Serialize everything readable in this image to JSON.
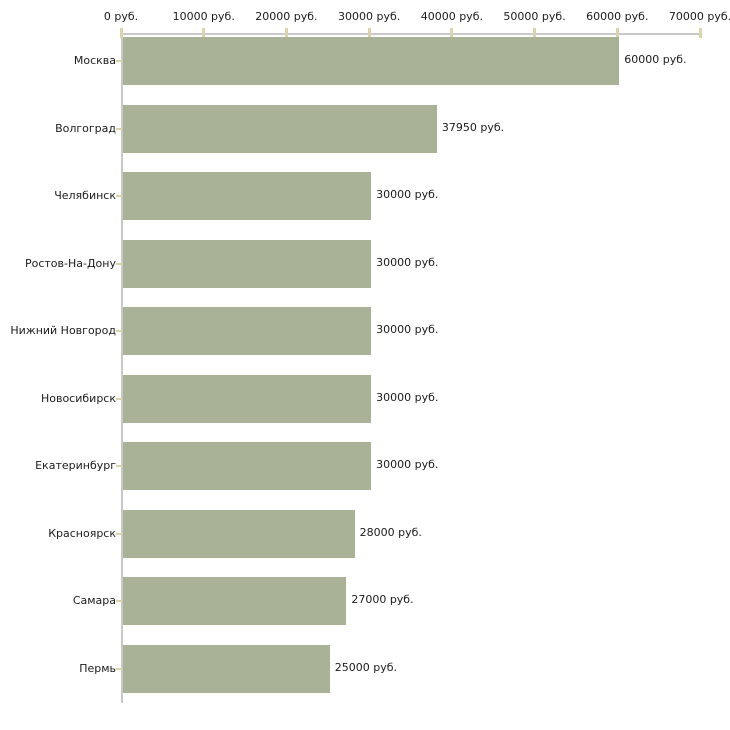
{
  "chart_data": {
    "type": "bar",
    "orientation": "horizontal",
    "title": "",
    "xlabel": "",
    "ylabel": "",
    "unit": "руб.",
    "grid": false,
    "legend": null,
    "xlim": [
      0,
      70000
    ],
    "x_ticks": [
      0,
      10000,
      20000,
      30000,
      40000,
      50000,
      60000,
      70000
    ],
    "x_tick_labels": [
      "0 руб.",
      "10000 руб.",
      "20000 руб.",
      "30000 руб.",
      "40000 руб.",
      "50000 руб.",
      "60000 руб.",
      "70000 руб."
    ],
    "categories": [
      "Москва",
      "Волгоград",
      "Челябинск",
      "Ростов-На-Дону",
      "Нижний Новгород",
      "Новосибирск",
      "Екатеринбург",
      "Красноярск",
      "Самара",
      "Пермь"
    ],
    "values": [
      60000,
      37950,
      30000,
      30000,
      30000,
      30000,
      30000,
      28000,
      27000,
      25000
    ],
    "value_labels": [
      "60000 руб.",
      "37950 руб.",
      "30000 руб.",
      "30000 руб.",
      "30000 руб.",
      "30000 руб.",
      "30000 руб.",
      "28000 руб.",
      "27000 руб.",
      "25000 руб."
    ],
    "colors": {
      "bar": "#a9b196",
      "axis": "#c8c8c8",
      "tick": "#d8d5ae",
      "text": "#1c1c1c",
      "background": "#ffffff"
    }
  }
}
